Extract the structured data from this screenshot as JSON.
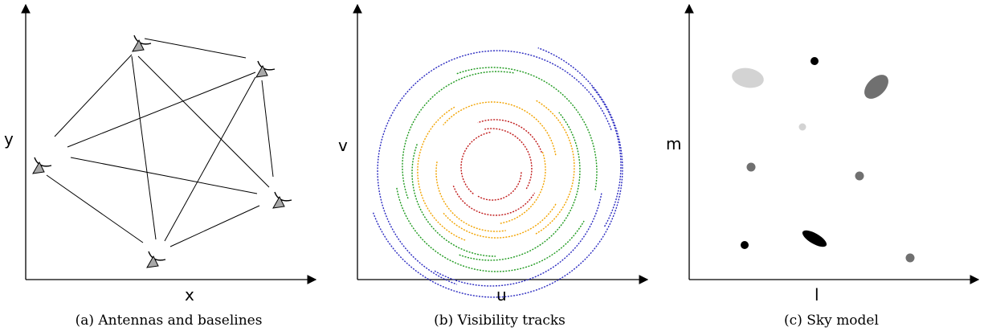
{
  "panels": [
    {
      "caption": "(a) Antennas and baselines",
      "xlabel": "x",
      "ylabel": "y"
    },
    {
      "caption": "(b) Visibility tracks",
      "xlabel": "u",
      "ylabel": "v"
    },
    {
      "caption": "(c) Sky model",
      "xlabel": "l",
      "ylabel": "m"
    }
  ],
  "colors": {
    "track_outer": "#2a2ac0",
    "track_mid": "#1f9a1f",
    "track_inner": "#f2a300",
    "track_core": "#c01a1a",
    "antenna_base": "#a8a8a8",
    "source_black": "#000000",
    "source_dark": "#707070",
    "source_light": "#d3d3d3"
  }
}
